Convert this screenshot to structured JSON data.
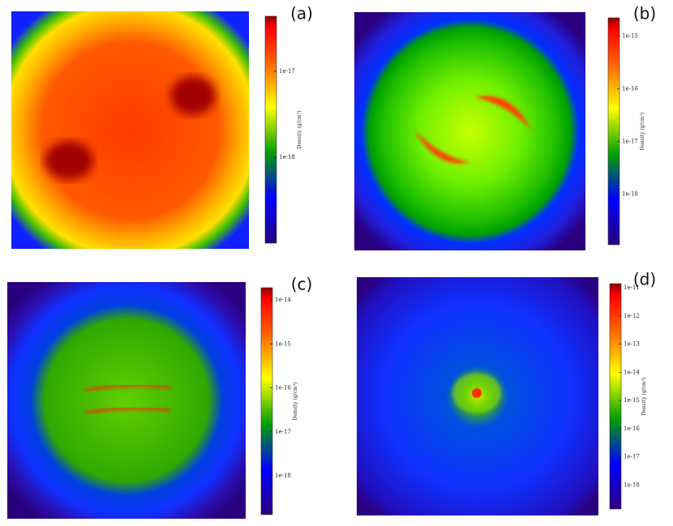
{
  "panels": [
    {
      "label": "(a)",
      "colorbar": {
        "label": "Density (g/cm³)",
        "scale": "log",
        "lim": [
          1e-19,
          4.4e-17
        ],
        "ticks": [
          {
            "value": 1e-17,
            "label": "1e-17"
          },
          {
            "value": 1e-18,
            "label": "1e-18"
          }
        ]
      }
    },
    {
      "label": "(b)",
      "colorbar": {
        "label": "Density (g/cm³)",
        "scale": "log",
        "lim": [
          1.1e-19,
          2.2e-15
        ],
        "ticks": [
          {
            "value": 1e-15,
            "label": "1e-15"
          },
          {
            "value": 1e-16,
            "label": "1e-16"
          },
          {
            "value": 1e-17,
            "label": "1e-17"
          },
          {
            "value": 1e-18,
            "label": "1e-18"
          }
        ]
      }
    },
    {
      "label": "(c)",
      "colorbar": {
        "label": "Density (g/cm³)",
        "scale": "log",
        "lim": [
          1.3e-19,
          1.9e-14
        ],
        "ticks": [
          {
            "value": 1e-14,
            "label": "1e-14"
          },
          {
            "value": 1e-15,
            "label": "1e-15"
          },
          {
            "value": 1e-16,
            "label": "1e-16"
          },
          {
            "value": 1e-17,
            "label": "1e-17"
          },
          {
            "value": 1e-18,
            "label": "1e-18"
          }
        ]
      }
    },
    {
      "label": "(d)",
      "colorbar": {
        "label": "Density (g/cm³)",
        "scale": "log",
        "lim": [
          1.4e-19,
          1.4e-11
        ],
        "ticks": [
          {
            "value": 1e-11,
            "label": "1e-11"
          },
          {
            "value": 1e-12,
            "label": "1e-12"
          },
          {
            "value": 1e-13,
            "label": "1e-13"
          },
          {
            "value": 1e-14,
            "label": "1e-14"
          },
          {
            "value": 1e-15,
            "label": "1e-15"
          },
          {
            "value": 1e-16,
            "label": "1e-16"
          },
          {
            "value": 1e-17,
            "label": "1e-17"
          },
          {
            "value": 1e-18,
            "label": "1e-18"
          }
        ]
      }
    }
  ]
}
